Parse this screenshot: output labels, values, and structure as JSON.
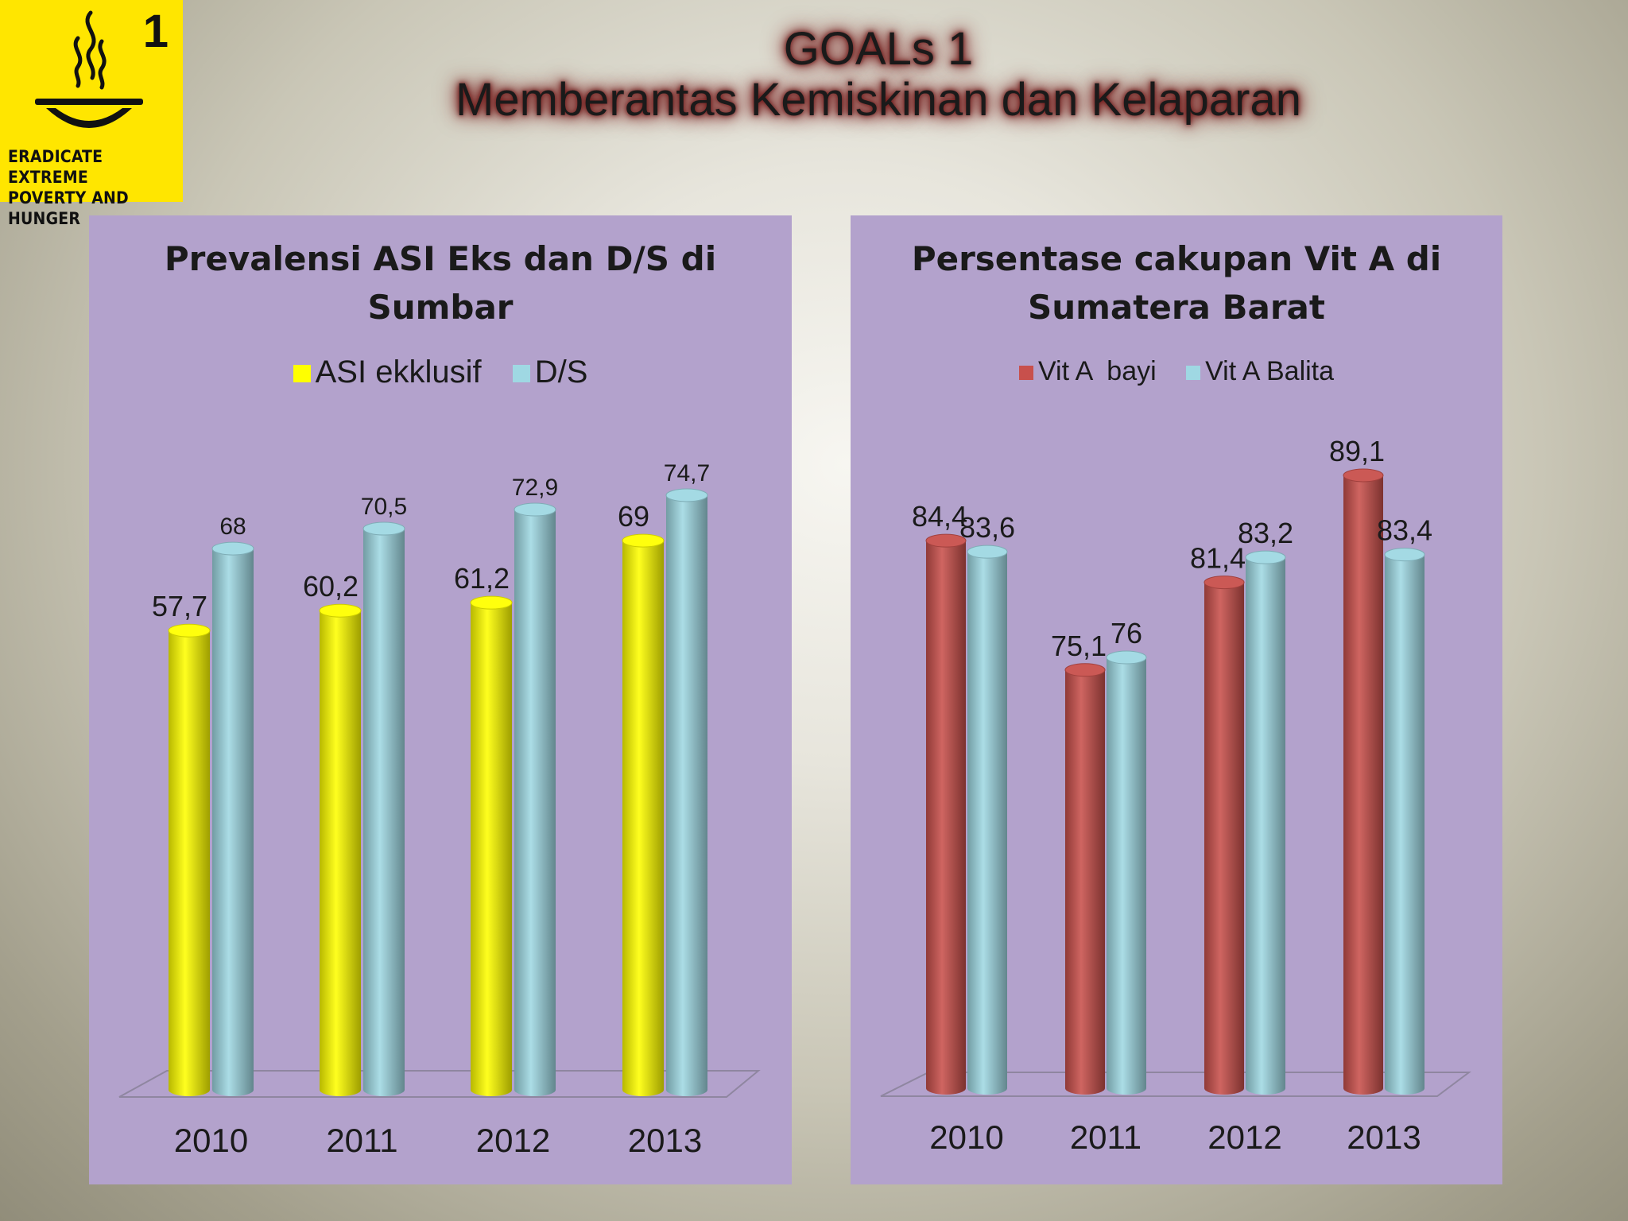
{
  "logo": {
    "number": "1",
    "text": "ERADICATE EXTREME\nPOVERTY AND HUNGER",
    "icon": "bowl-with-steam-icon",
    "color": "#ffe600"
  },
  "slide_title": {
    "line1": "GOALs 1",
    "line2": "Memberantas Kemiskinan dan Kelaparan"
  },
  "chart_data": [
    {
      "type": "bar",
      "title_line1": "Prevalensi ASI Eks dan D/S di",
      "title_line2": "Sumbar",
      "categories": [
        "2010",
        "2011",
        "2012",
        "2013"
      ],
      "series": [
        {
          "name": "ASI ekklusif",
          "values": [
            57.7,
            60.2,
            61.2,
            69
          ],
          "labels": [
            "57,7",
            "60,2",
            "61,2",
            "69"
          ],
          "color": "#ffff00"
        },
        {
          "name": "D/S",
          "values": [
            68,
            70.5,
            72.9,
            74.7
          ],
          "labels": [
            "68",
            "70,5",
            "72,9",
            "74,7"
          ],
          "color": "#9fd8e3"
        }
      ],
      "legend_position": "top",
      "grid": false
    },
    {
      "type": "bar",
      "title_line1": "Persentase cakupan Vit A di",
      "title_line2": "Sumatera Barat",
      "categories": [
        "2010",
        "2011",
        "2012",
        "2013"
      ],
      "series": [
        {
          "name": "Vit A  bayi",
          "values": [
            84.4,
            75.1,
            81.4,
            89.1
          ],
          "labels": [
            "84,4",
            "75,1",
            "81,4",
            "89,1"
          ],
          "color": "#c8504c"
        },
        {
          "name": "Vit A Balita",
          "values": [
            83.6,
            76,
            83.2,
            83.4
          ],
          "labels": [
            "83,6",
            "76",
            "83,2",
            "83,4"
          ],
          "color": "#9fd8e3"
        }
      ],
      "legend_position": "top",
      "grid": false
    }
  ]
}
